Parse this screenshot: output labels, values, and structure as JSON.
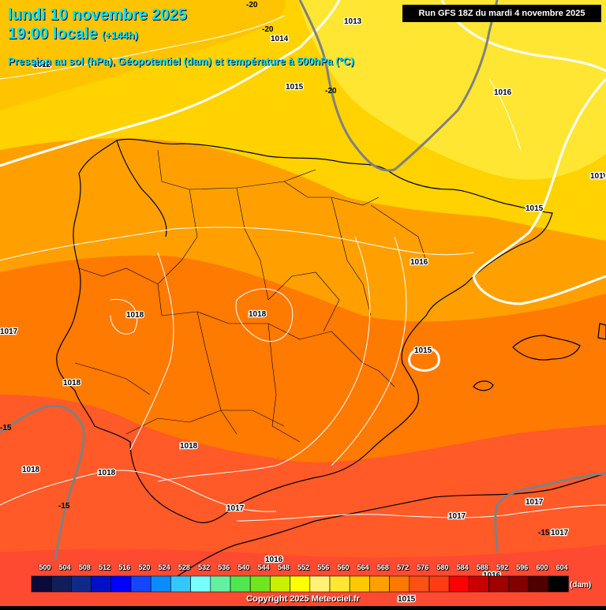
{
  "header": {
    "date_line": "lundi 10 novembre 2025",
    "time_line": "19:00 locale",
    "time_offset": "(+144h)",
    "subtitle": "Pression au sol (hPa), Géopotentiel (dam) et température à 500hPa (°C)",
    "run_info": "Run GFS 18Z du mardi 4 novembre 2025"
  },
  "pressure_labels": [
    "1013",
    "1014",
    "1015",
    "1016",
    "1016",
    "1015",
    "1016",
    "1015",
    "1018",
    "1018",
    "1018",
    "1018",
    "1018",
    "1018",
    "1017",
    "1017",
    "1017",
    "1017",
    "1016",
    "1012",
    "1015",
    "1017",
    "1016",
    "101"
  ],
  "temp_labels": [
    "-20",
    "-20",
    "-20",
    "-15",
    "-15",
    "-15"
  ],
  "legend": {
    "values": [
      "500",
      "504",
      "508",
      "512",
      "516",
      "520",
      "524",
      "528",
      "532",
      "536",
      "540",
      "544",
      "548",
      "552",
      "556",
      "560",
      "564",
      "568",
      "572",
      "576",
      "580",
      "584",
      "588",
      "592",
      "596",
      "600",
      "604"
    ],
    "colors": [
      "#0a0a3c",
      "#0f1e5a",
      "#102a8c",
      "#0010c8",
      "#0000ff",
      "#1446ff",
      "#0a8cff",
      "#32c8ff",
      "#78ffff",
      "#64f0a0",
      "#50e650",
      "#6ee61e",
      "#c8f000",
      "#ffff00",
      "#fff078",
      "#ffe632",
      "#ffc800",
      "#ffa000",
      "#ff7800",
      "#ff5014",
      "#ff3c14",
      "#ff0000",
      "#c80000",
      "#a00000",
      "#820000",
      "#500000",
      "#000000"
    ],
    "unit": "(dam)"
  },
  "copyright": "Copyright 2025 Meteociel.fr"
}
